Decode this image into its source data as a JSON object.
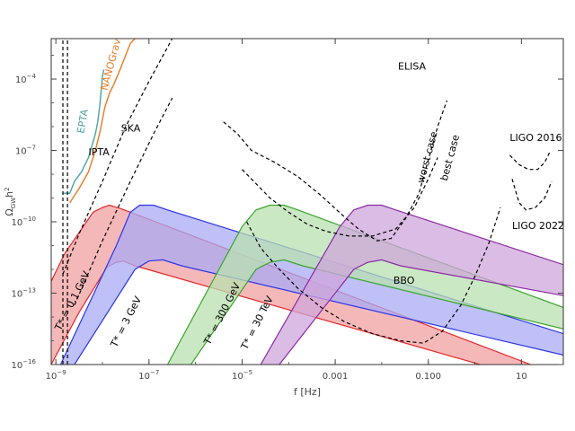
{
  "chart_data": {
    "type": "area",
    "xlabel": "f [Hz]",
    "ylabel_main": "Ω",
    "ylabel_sub": "GW",
    "ylabel_tail": "h",
    "ylabel_sup": "2",
    "xscale": "log",
    "yscale": "log",
    "xlim_log10": [
      -9.1,
      1.9
    ],
    "ylim_log10": [
      -16,
      -2.3
    ],
    "x_ticks": [
      {
        "log": -9,
        "label": "10"
      },
      {
        "log": -7,
        "label": "10"
      },
      {
        "log": -5,
        "label": "10"
      },
      {
        "log": -3,
        "label": "0.001"
      },
      {
        "log": -1,
        "label": "0.100"
      },
      {
        "log": 1,
        "label": "10"
      }
    ],
    "x_tick_exps": {
      "-9": "−9",
      "-7": "−7",
      "-5": "−5"
    },
    "y_ticks": [
      {
        "log": -16,
        "label": "10",
        "exp": "−16"
      },
      {
        "log": -13,
        "label": "10",
        "exp": "−13"
      },
      {
        "log": -10,
        "label": "10",
        "exp": "−10"
      },
      {
        "log": -7,
        "label": "10",
        "exp": "−7"
      },
      {
        "log": -4,
        "label": "10",
        "exp": "−4"
      }
    ],
    "bands": [
      {
        "name": "T* = 0.1 GeV",
        "label": "T* = 0.1 GeV",
        "color": "#e8262a",
        "fill": "#f2a0a2",
        "upper": [
          [
            -9.1,
            -12.5
          ],
          [
            -8.8,
            -11.3
          ],
          [
            -8.2,
            -9.6
          ],
          [
            -8.0,
            -9.4
          ],
          [
            -7.85,
            -9.3
          ],
          [
            -7.6,
            -9.45
          ],
          [
            1.2,
            -16
          ]
        ],
        "lower": [
          [
            -9.1,
            -16
          ],
          [
            -8.5,
            -13.8
          ],
          [
            -7.9,
            -11.9
          ],
          [
            -7.7,
            -11.7
          ],
          [
            -7.55,
            -11.65
          ],
          [
            -7.3,
            -11.85
          ],
          [
            1.9,
            -17.0
          ]
        ]
      },
      {
        "name": "T* = 3 GeV",
        "label": "T* = 3 GeV",
        "color": "#2b35e8",
        "fill": "#a8abf4",
        "upper": [
          [
            -8.9,
            -16
          ],
          [
            -7.7,
            -11.0
          ],
          [
            -7.4,
            -9.6
          ],
          [
            -7.2,
            -9.3
          ],
          [
            -6.9,
            -9.3
          ],
          [
            -6.6,
            -9.5
          ],
          [
            1.9,
            -14.7
          ]
        ],
        "lower": [
          [
            -8.6,
            -16
          ],
          [
            -7.3,
            -12.0
          ],
          [
            -7.0,
            -11.65
          ],
          [
            -6.7,
            -11.6
          ],
          [
            -6.3,
            -11.85
          ],
          [
            1.9,
            -15.6
          ]
        ]
      },
      {
        "name": "T* = 300 GeV",
        "label": "T* = 300 GeV",
        "color": "#3aa52c",
        "fill": "#b9e0b0",
        "upper": [
          [
            -6.6,
            -16
          ],
          [
            -5.0,
            -10.2
          ],
          [
            -4.7,
            -9.5
          ],
          [
            -4.4,
            -9.3
          ],
          [
            -4.1,
            -9.3
          ],
          [
            -3.8,
            -9.5
          ],
          [
            1.9,
            -13.6
          ]
        ],
        "lower": [
          [
            -6.1,
            -16
          ],
          [
            -4.7,
            -12.0
          ],
          [
            -4.4,
            -11.7
          ],
          [
            -4.1,
            -11.6
          ],
          [
            -3.7,
            -11.85
          ],
          [
            1.9,
            -14.5
          ]
        ]
      },
      {
        "name": "T* = 30 TeV",
        "label": "T* = 30 TeV",
        "color": "#8a2aa3",
        "fill": "#cfa6db",
        "upper": [
          [
            -4.6,
            -16
          ],
          [
            -2.9,
            -10.2
          ],
          [
            -2.6,
            -9.5
          ],
          [
            -2.3,
            -9.3
          ],
          [
            -2.0,
            -9.3
          ],
          [
            -1.7,
            -9.5
          ],
          [
            1.9,
            -11.8
          ]
        ],
        "lower": [
          [
            -4.2,
            -16
          ],
          [
            -2.6,
            -12.0
          ],
          [
            -2.3,
            -11.7
          ],
          [
            -2.0,
            -11.6
          ],
          [
            -1.6,
            -11.85
          ],
          [
            1.9,
            -13.1
          ]
        ]
      }
    ],
    "band_label_pos": [
      {
        "lx": -8.9,
        "ly": -14.6,
        "rot": -63
      },
      {
        "lx": -7.7,
        "ly": -15.3,
        "rot": -63
      },
      {
        "lx": -5.7,
        "ly": -15.2,
        "rot": -63
      },
      {
        "lx": -4.9,
        "ly": -15.4,
        "rot": -63
      }
    ],
    "sensitivity_curves": [
      {
        "name": "EPTA",
        "label": "EPTA",
        "color": "#4aa3a0",
        "style": "solid",
        "points": [
          [
            -8.85,
            -8.8
          ],
          [
            -8.7,
            -8.8
          ],
          [
            -8.6,
            -8.3
          ],
          [
            -8.45,
            -7.9
          ],
          [
            -8.3,
            -7.3
          ],
          [
            -8.15,
            -6.3
          ],
          [
            -8.1,
            -5.8
          ],
          [
            -8.05,
            -5.0
          ],
          [
            -8.0,
            -3.9
          ],
          [
            -7.97,
            -3.6
          ]
        ]
      },
      {
        "name": "NANOGrav",
        "label": "NANOGrav",
        "color": "#e87b22",
        "style": "solid",
        "points": [
          [
            -8.7,
            -9.2
          ],
          [
            -8.5,
            -8.6
          ],
          [
            -8.3,
            -7.9
          ],
          [
            -8.15,
            -7.0
          ],
          [
            -8.05,
            -6.2
          ],
          [
            -7.95,
            -5.2
          ],
          [
            -7.85,
            -4.6
          ],
          [
            -7.75,
            -4.2
          ],
          [
            -7.6,
            -3.5
          ],
          [
            -7.5,
            -3.0
          ],
          [
            -7.4,
            -2.5
          ],
          [
            -7.3,
            -2.3
          ]
        ]
      },
      {
        "name": "IPTA",
        "label": "IPTA",
        "color": "#000000",
        "style": "dashed",
        "points": [
          [
            -8.85,
            -12.2
          ],
          [
            -8.5,
            -10.5
          ],
          [
            -8.0,
            -8.3
          ],
          [
            -7.5,
            -6.0
          ],
          [
            -7.0,
            -4.1
          ],
          [
            -6.5,
            -2.3
          ]
        ]
      },
      {
        "name": "SKA",
        "label": "SKA",
        "color": "#000000",
        "style": "dashed",
        "points": [
          [
            -8.6,
            -13.5
          ],
          [
            -8.0,
            -10.8
          ],
          [
            -7.4,
            -8.3
          ],
          [
            -6.9,
            -6.3
          ],
          [
            -6.5,
            -4.8
          ]
        ]
      },
      {
        "name": "PTA-vertical-1",
        "label": "",
        "color": "#000000",
        "style": "dashed",
        "points": [
          [
            -8.85,
            -16
          ],
          [
            -8.85,
            -2.3
          ]
        ]
      },
      {
        "name": "PTA-vertical-2",
        "label": "",
        "color": "#000000",
        "style": "dashed",
        "points": [
          [
            -8.75,
            -16
          ],
          [
            -8.75,
            -2.3
          ]
        ]
      },
      {
        "name": "ELISA worst case",
        "label": "worst case",
        "color": "#000000",
        "style": "dashed",
        "points": [
          [
            -5.4,
            -5.8
          ],
          [
            -5.1,
            -6.3
          ],
          [
            -4.8,
            -7.0
          ],
          [
            -4.3,
            -7.5
          ],
          [
            -3.8,
            -8.1
          ],
          [
            -3.3,
            -8.9
          ],
          [
            -2.8,
            -9.8
          ],
          [
            -2.5,
            -10.3
          ],
          [
            -2.1,
            -10.8
          ],
          [
            -1.8,
            -10.7
          ],
          [
            -1.5,
            -9.9
          ],
          [
            -1.2,
            -8.8
          ],
          [
            -1.0,
            -7.4
          ],
          [
            -0.8,
            -6.0
          ],
          [
            -0.6,
            -4.9
          ]
        ]
      },
      {
        "name": "ELISA best case",
        "label": "best case",
        "color": "#000000",
        "style": "dashed",
        "points": [
          [
            -5.0,
            -7.8
          ],
          [
            -4.7,
            -8.4
          ],
          [
            -4.4,
            -9.0
          ],
          [
            -4.0,
            -9.6
          ],
          [
            -3.6,
            -10.1
          ],
          [
            -3.2,
            -10.4
          ],
          [
            -2.7,
            -10.6
          ],
          [
            -2.2,
            -10.6
          ],
          [
            -1.7,
            -10.3
          ],
          [
            -1.3,
            -9.4
          ],
          [
            -1.0,
            -8.2
          ],
          [
            -0.8,
            -7.3
          ]
        ]
      },
      {
        "name": "BBO",
        "label": "BBO",
        "color": "#000000",
        "style": "dashed",
        "points": [
          [
            -4.9,
            -10.0
          ],
          [
            -4.6,
            -11.1
          ],
          [
            -4.2,
            -12.0
          ],
          [
            -3.8,
            -12.8
          ],
          [
            -3.3,
            -13.6
          ],
          [
            -2.8,
            -14.2
          ],
          [
            -2.2,
            -14.7
          ],
          [
            -1.6,
            -15.0
          ],
          [
            -1.1,
            -15.1
          ],
          [
            -0.7,
            -14.6
          ],
          [
            -0.3,
            -13.5
          ],
          [
            0.0,
            -12.3
          ],
          [
            0.3,
            -10.9
          ],
          [
            0.55,
            -9.4
          ]
        ]
      },
      {
        "name": "LIGO 2016",
        "label": "LIGO 2016",
        "color": "#000000",
        "style": "dashed",
        "points": [
          [
            0.75,
            -7.2
          ],
          [
            0.95,
            -7.6
          ],
          [
            1.15,
            -7.8
          ],
          [
            1.35,
            -7.8
          ],
          [
            1.5,
            -7.5
          ],
          [
            1.6,
            -7.1
          ]
        ]
      },
      {
        "name": "LIGO 2022",
        "label": "LIGO 2022",
        "color": "#000000",
        "style": "dashed",
        "points": [
          [
            0.8,
            -8.2
          ],
          [
            0.95,
            -9.2
          ],
          [
            1.1,
            -9.5
          ],
          [
            1.3,
            -9.4
          ],
          [
            1.5,
            -9.0
          ],
          [
            1.65,
            -8.3
          ]
        ]
      }
    ],
    "curve_labels": [
      {
        "text": "EPTA",
        "color": "#4aa3a0",
        "x": -8.4,
        "y": -6.3,
        "rot": -80
      },
      {
        "text": "NANOGrav",
        "color": "#e87b22",
        "x": -7.9,
        "y": -4.5,
        "rot": -75
      },
      {
        "text": "IPTA",
        "color": "#000000",
        "x": -8.3,
        "y": -7.2,
        "rot": 0
      },
      {
        "text": "SKA",
        "color": "#000000",
        "x": -7.6,
        "y": -6.2,
        "rot": 0
      },
      {
        "text": "ELISA",
        "color": "#000000",
        "x": -1.65,
        "y": -3.6,
        "rot": 0
      },
      {
        "text": "worst case",
        "color": "#000000",
        "x": -1.1,
        "y": -8.4,
        "rot": -75
      },
      {
        "text": "best case",
        "color": "#000000",
        "x": -0.6,
        "y": -8.3,
        "rot": -75
      },
      {
        "text": "BBO",
        "color": "#000000",
        "x": -1.75,
        "y": -12.6,
        "rot": 0
      },
      {
        "text": "LIGO 2016",
        "color": "#000000",
        "x": 0.75,
        "y": -6.6,
        "rot": 0
      },
      {
        "text": "LIGO 2022",
        "color": "#000000",
        "x": 0.8,
        "y": -10.3,
        "rot": 0
      }
    ],
    "grid": false
  }
}
